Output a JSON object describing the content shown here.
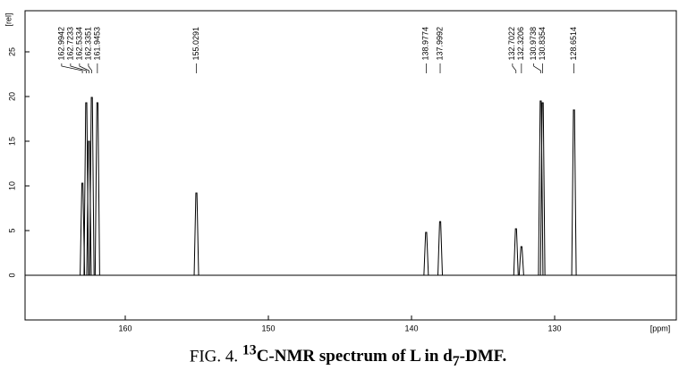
{
  "chart_data": {
    "type": "nmr",
    "x_label": "[ppm]",
    "y_label": "[rel]",
    "x": [
      162.9942,
      162.7233,
      162.5334,
      162.3351,
      161.9453,
      155.0291,
      138.9774,
      137.9992,
      132.7022,
      132.3206,
      130.9738,
      130.8354,
      128.6514
    ],
    "values": [
      10.3,
      19.3,
      15,
      19.9,
      19.3,
      9.2,
      4.8,
      6,
      5.2,
      3.2,
      19.5,
      19.3,
      18.5
    ],
    "color": "#000000",
    "xlim": [
      167,
      121.5
    ],
    "xticks": [
      160,
      150,
      140,
      130
    ],
    "ylim": [
      -5,
      29.6
    ],
    "yticks": [
      0,
      5,
      10,
      15,
      20,
      25
    ],
    "caption": {
      "prefix": "FIG. 4.",
      "sup": "13",
      "main": "C-NMR spectrum of L in d",
      "sub": "7",
      "suffix": "-DMF."
    }
  }
}
